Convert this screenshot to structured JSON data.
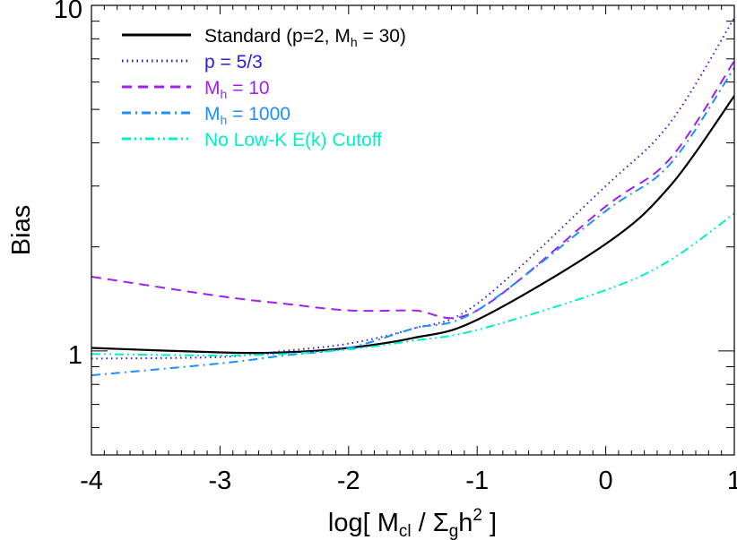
{
  "chart_data": {
    "type": "line",
    "title": "",
    "xlabel": "log[ M_cl / Σ_g h^2 ]",
    "xlabel_parts": {
      "pre": "log[ M",
      "sub1": "cl",
      "mid": " / Σ",
      "sub2": "g",
      "h": "h",
      "sup": "2",
      "post": " ]"
    },
    "ylabel": "Bias",
    "xlim": [
      -4,
      1
    ],
    "ylim": [
      0.5,
      10
    ],
    "yscale": "log",
    "grid": false,
    "legend_position": "upper left",
    "x_ticks": [
      -4,
      -3,
      -2,
      -1,
      0,
      1
    ],
    "x_tick_labels": [
      "-4",
      "-3",
      "-2",
      "-1",
      "0",
      "1"
    ],
    "y_ticks": [
      1,
      10
    ],
    "y_tick_labels": [
      "1",
      "10"
    ],
    "x": [
      -4,
      -3,
      -2.5,
      -2,
      -1.5,
      -1,
      0,
      0.5,
      1
    ],
    "series": [
      {
        "name": "Standard (p=2, M_h = 30)",
        "legend_pre": "Standard (p=2, M",
        "legend_sub": "h",
        "legend_post": " = 30)",
        "color": "#000000",
        "style": "solid",
        "width": 2.2,
        "values": [
          1.02,
          0.99,
          0.99,
          1.02,
          1.09,
          1.23,
          2.04,
          3.0,
          5.47
        ]
      },
      {
        "name": "p = 5/3",
        "legend_pre": "p = 5/3",
        "legend_sub": "",
        "legend_post": "",
        "color": "#2a1ee0",
        "style": "dotted",
        "width": 2,
        "values": [
          0.95,
          0.96,
          1.0,
          1.05,
          1.16,
          1.37,
          3.0,
          4.57,
          9.2
        ]
      },
      {
        "name": "M_h = 10",
        "legend_pre": "M",
        "legend_sub": "h",
        "legend_post": " = 10",
        "color": "#a020f0",
        "style": "dashed",
        "width": 2,
        "values": [
          1.64,
          1.44,
          1.37,
          1.31,
          1.31,
          1.31,
          2.62,
          3.6,
          6.9
        ]
      },
      {
        "name": "M_h = 1000",
        "legend_pre": "M",
        "legend_sub": "h",
        "legend_post": " = 1000",
        "color": "#1e8fff",
        "style": "dashdot",
        "width": 2,
        "values": [
          0.85,
          0.92,
          0.97,
          1.02,
          1.16,
          1.31,
          2.54,
          3.47,
          6.6
        ]
      },
      {
        "name": "No Low-K E(k) Cutoff",
        "legend_pre": "No Low-K E(k) Cutoff",
        "legend_sub": "",
        "legend_post": "",
        "color": "#00f0c8",
        "style": "dashdotdot",
        "width": 2,
        "values": [
          0.98,
          0.97,
          0.98,
          1.01,
          1.07,
          1.15,
          1.5,
          1.83,
          2.5
        ]
      }
    ]
  }
}
